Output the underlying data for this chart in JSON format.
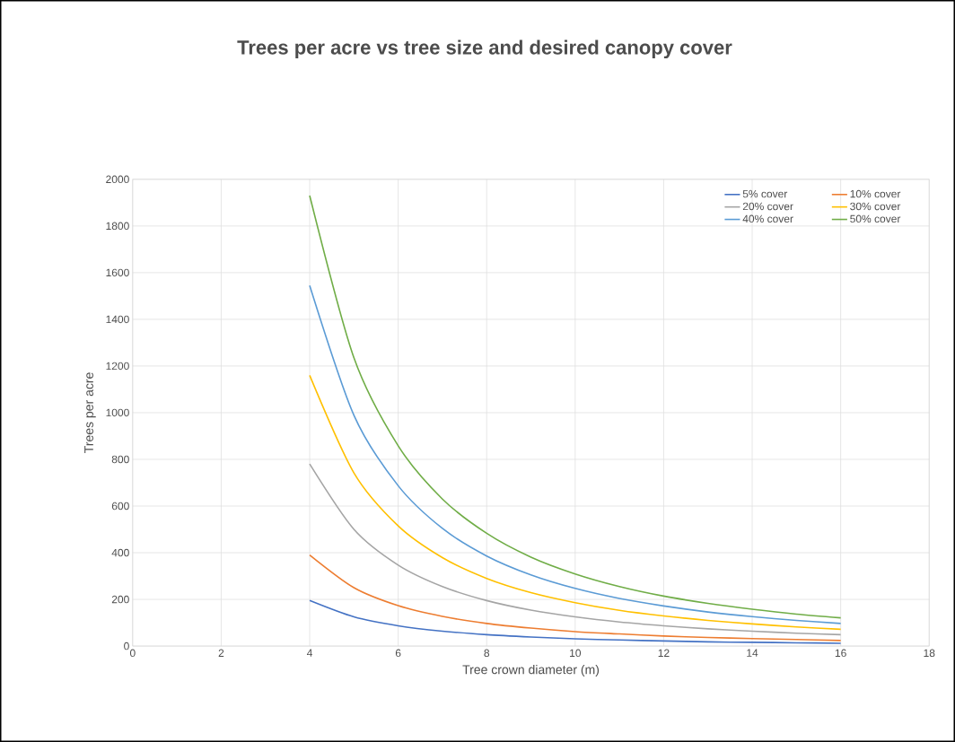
{
  "chart_data": {
    "type": "line",
    "title": "Trees per acre vs tree size and desired canopy cover",
    "xlabel": "Tree crown diameter (m)",
    "ylabel": "Trees per acre",
    "x": [
      4,
      5,
      6,
      7,
      8,
      9,
      10,
      11,
      12,
      13,
      14,
      15,
      16
    ],
    "series": [
      {
        "name": "5% cover",
        "color": "#4472c4",
        "values": [
          195,
          125,
          87,
          64,
          49,
          39,
          31,
          26,
          22,
          18,
          16,
          14,
          12
        ]
      },
      {
        "name": "10% cover",
        "color": "#ed7d31",
        "values": [
          390,
          250,
          173,
          127,
          97,
          77,
          62,
          52,
          43,
          37,
          32,
          28,
          24
        ]
      },
      {
        "name": "20% cover",
        "color": "#a5a5a5",
        "values": [
          780,
          500,
          347,
          255,
          195,
          154,
          125,
          103,
          87,
          74,
          64,
          55,
          49
        ]
      },
      {
        "name": "30% cover",
        "color": "#ffc000",
        "values": [
          1160,
          742,
          515,
          379,
          290,
          229,
          186,
          153,
          129,
          110,
          95,
          82,
          72
        ]
      },
      {
        "name": "40% cover",
        "color": "#5b9bd5",
        "values": [
          1545,
          989,
          687,
          504,
          386,
          305,
          247,
          204,
          172,
          146,
          126,
          110,
          97
        ]
      },
      {
        "name": "50% cover",
        "color": "#70ad47",
        "values": [
          1930,
          1235,
          858,
          630,
          483,
          381,
          309,
          255,
          214,
          183,
          158,
          137,
          121
        ]
      }
    ],
    "xlim": [
      0,
      18
    ],
    "xticks": [
      0,
      2,
      4,
      6,
      8,
      10,
      12,
      14,
      16,
      18
    ],
    "ylim": [
      0,
      2000
    ],
    "yticks": [
      0,
      200,
      400,
      600,
      800,
      1000,
      1200,
      1400,
      1600,
      1800,
      2000
    ],
    "grid": true,
    "legend": "top right",
    "marker": "none"
  }
}
